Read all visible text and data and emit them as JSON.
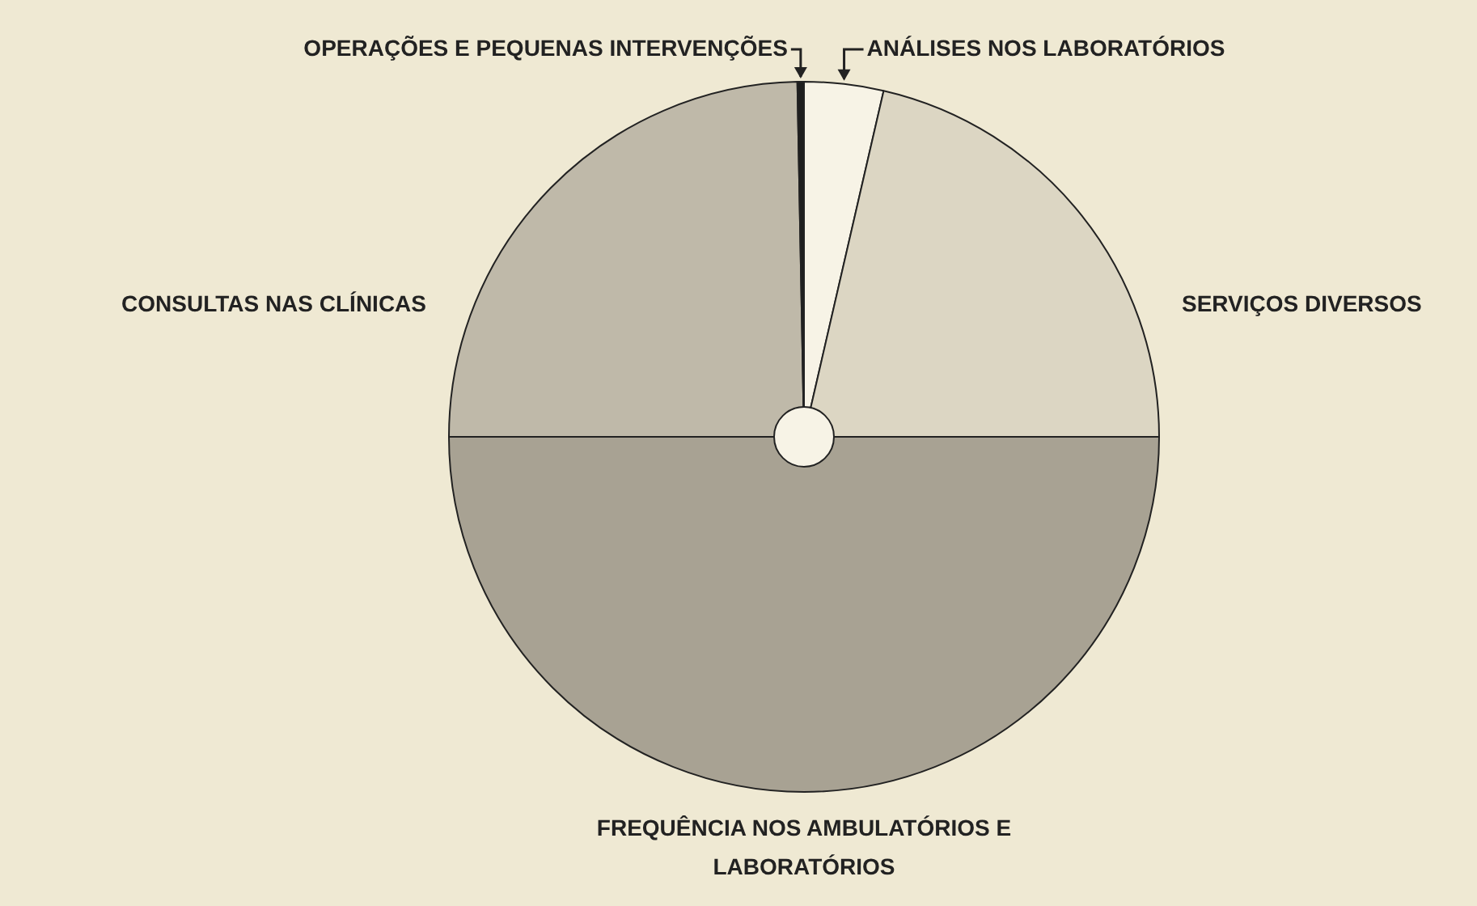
{
  "chart_data": {
    "type": "pie",
    "categories": [
      "ANÁLISES NOS LABORATÓRIOS",
      "SERVIÇOS DIVERSOS",
      "FREQUÊNCIA NOS AMBULATÓRIOS E LABORATÓRIOS",
      "CONSULTAS NAS CLÍNICAS",
      "OPERAÇÕES E PEQUENAS INTERVENÇÕES"
    ],
    "values": [
      3.6,
      21.4,
      50,
      24.7,
      0.3
    ],
    "colors": [
      "#f7f3e6",
      "#dcd6c3",
      "#a8a293",
      "#bfb9a9",
      "#1e1e1e"
    ],
    "legend": false
  }
}
